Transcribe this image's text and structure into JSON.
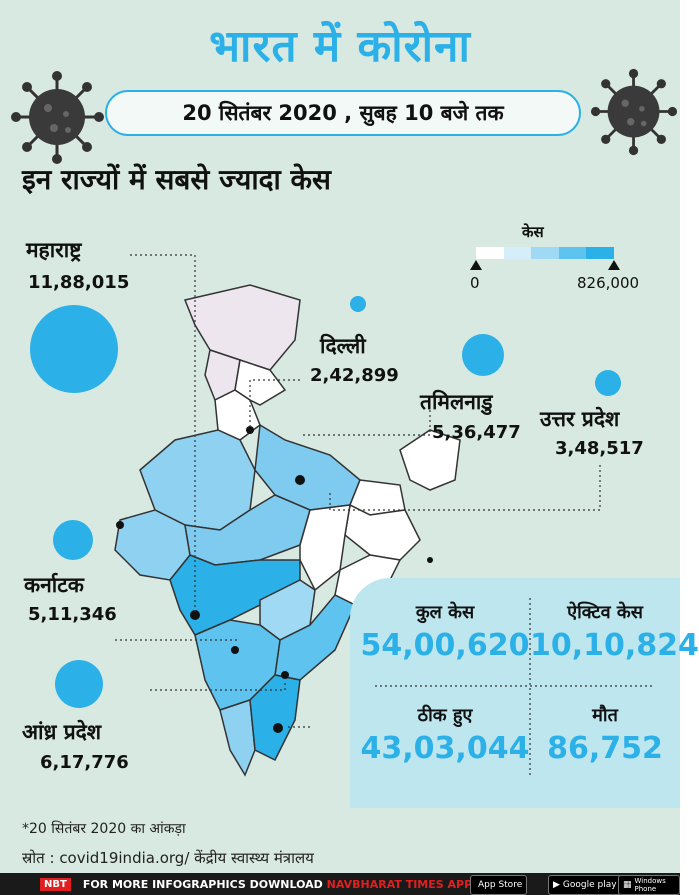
{
  "title": "भारत में कोरोना",
  "date_line": "20 सितंबर 2020 , सुबह 10 बजे तक",
  "subtitle": "इन राज्यों में सबसे ज्यादा केस",
  "legend": {
    "title": "केस",
    "min": "0",
    "max": "826,000",
    "colors": [
      "#ffffff",
      "#d5eef9",
      "#9fd9f3",
      "#5ec3ee",
      "#2bb0e8"
    ]
  },
  "states": [
    {
      "name": "महाराष्ट्र",
      "cases": "11,88,015"
    },
    {
      "name": "दिल्ली",
      "cases": "2,42,899"
    },
    {
      "name": "तमिलनाडु",
      "cases": "5,36,477"
    },
    {
      "name": "उत्तर प्रदेश",
      "cases": "3,48,517"
    },
    {
      "name": "कर्नाटक",
      "cases": "5,11,346"
    },
    {
      "name": "आंध्र प्रदेश",
      "cases": "6,17,776"
    }
  ],
  "stats": {
    "total_label": "कुल केस",
    "total_value": "54,00,620",
    "active_label": "ऐक्टिव केस",
    "active_value": "10,10,824",
    "recovered_label": "ठीक हुए",
    "recovered_value": "43,03,044",
    "deaths_label": "मौत",
    "deaths_value": "86,752"
  },
  "footnote": "*20 सितंबर 2020 का आंकड़ा",
  "source": "स्रोत : covid19india.org/ केंद्रीय स्वास्थ्य मंत्रालय",
  "footer": {
    "logo": "NBT",
    "text": "FOR MORE INFOGRAPHICS DOWNLOAD",
    "app": "NAVBHARAT TIMES APP",
    "app_store": "App Store",
    "google_play": "Google play",
    "windows": "Windows Phone"
  },
  "colors": {
    "accent": "#2bb0e8",
    "background": "#d7e9e1",
    "panel": "#bde6ef"
  }
}
